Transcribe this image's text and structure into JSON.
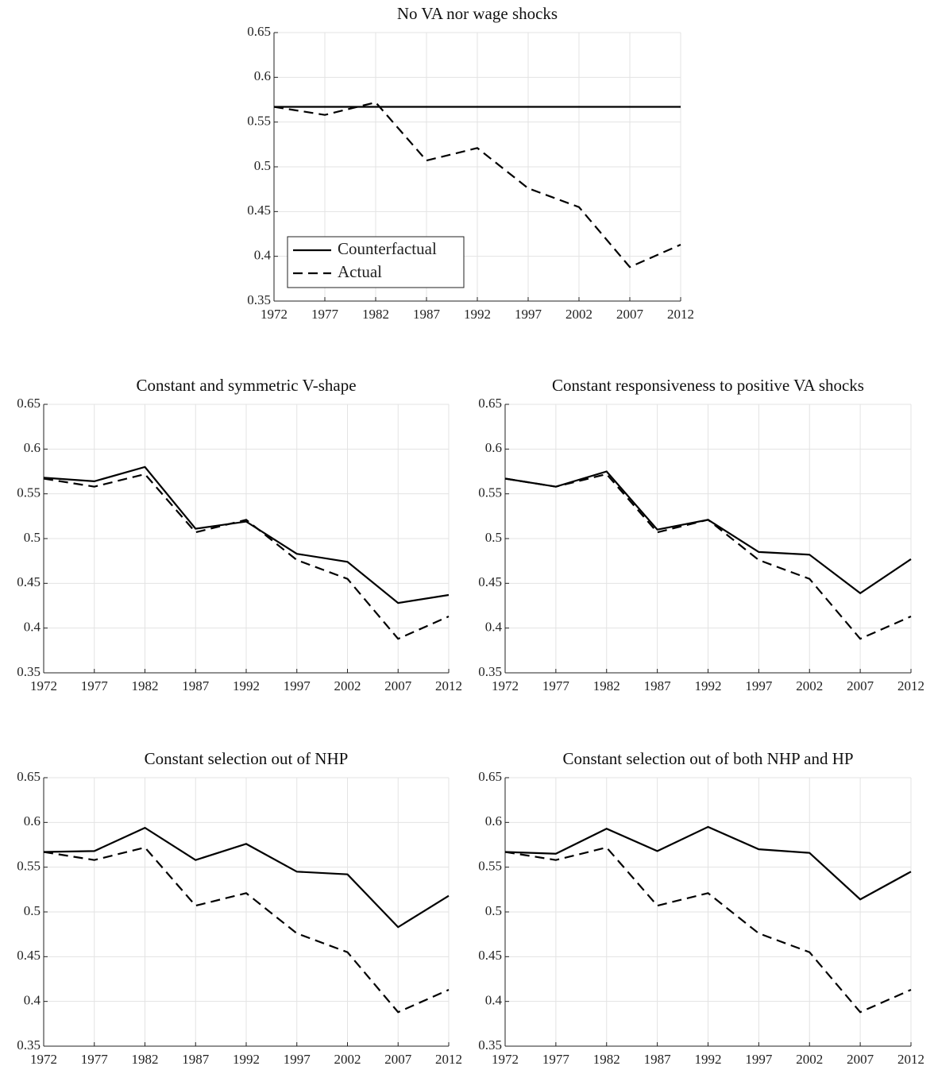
{
  "chart_data": [
    {
      "type": "line",
      "title": "No VA nor wage shocks",
      "x": [
        1972,
        1977,
        1982,
        1987,
        1992,
        1997,
        2002,
        2007,
        2012
      ],
      "series": [
        {
          "name": "Counterfactual",
          "color": "#000000",
          "dashed": false,
          "values": [
            0.567,
            0.567,
            0.567,
            0.567,
            0.567,
            0.567,
            0.567,
            0.567,
            0.567
          ]
        },
        {
          "name": "Actual",
          "color": "#000000",
          "dashed": true,
          "values": [
            0.567,
            0.558,
            0.572,
            0.507,
            0.521,
            0.476,
            0.455,
            0.388,
            0.413
          ]
        }
      ],
      "xlim": [
        1972,
        2012
      ],
      "xticks": [
        1972,
        1977,
        1982,
        1987,
        1992,
        1997,
        2002,
        2007,
        2012
      ],
      "ylim": [
        0.35,
        0.65
      ],
      "yticks": [
        0.35,
        0.4,
        0.45,
        0.5,
        0.55,
        0.6,
        0.65
      ],
      "grid": true,
      "legend": "lower left"
    },
    {
      "type": "line",
      "title": "Constant and symmetric V-shape",
      "x": [
        1972,
        1977,
        1982,
        1987,
        1992,
        1997,
        2002,
        2007,
        2012
      ],
      "series": [
        {
          "name": "Counterfactual",
          "color": "#000000",
          "dashed": false,
          "values": [
            0.568,
            0.564,
            0.58,
            0.511,
            0.519,
            0.483,
            0.474,
            0.428,
            0.437
          ]
        },
        {
          "name": "Actual",
          "color": "#000000",
          "dashed": true,
          "values": [
            0.567,
            0.558,
            0.572,
            0.507,
            0.521,
            0.476,
            0.455,
            0.388,
            0.413
          ]
        }
      ],
      "xlim": [
        1972,
        2012
      ],
      "xticks": [
        1972,
        1977,
        1982,
        1987,
        1992,
        1997,
        2002,
        2007,
        2012
      ],
      "ylim": [
        0.35,
        0.65
      ],
      "yticks": [
        0.35,
        0.4,
        0.45,
        0.5,
        0.55,
        0.6,
        0.65
      ],
      "grid": true
    },
    {
      "type": "line",
      "title": "Constant responsiveness to positive VA shocks",
      "x": [
        1972,
        1977,
        1982,
        1987,
        1992,
        1997,
        2002,
        2007,
        2012
      ],
      "series": [
        {
          "name": "Counterfactual",
          "color": "#000000",
          "dashed": false,
          "values": [
            0.567,
            0.558,
            0.575,
            0.51,
            0.521,
            0.485,
            0.482,
            0.439,
            0.477
          ]
        },
        {
          "name": "Actual",
          "color": "#000000",
          "dashed": true,
          "values": [
            0.567,
            0.558,
            0.572,
            0.507,
            0.521,
            0.476,
            0.455,
            0.388,
            0.413
          ]
        }
      ],
      "xlim": [
        1972,
        2012
      ],
      "xticks": [
        1972,
        1977,
        1982,
        1987,
        1992,
        1997,
        2002,
        2007,
        2012
      ],
      "ylim": [
        0.35,
        0.65
      ],
      "yticks": [
        0.35,
        0.4,
        0.45,
        0.5,
        0.55,
        0.6,
        0.65
      ],
      "grid": true
    },
    {
      "type": "line",
      "title": "Constant selection out of NHP",
      "x": [
        1972,
        1977,
        1982,
        1987,
        1992,
        1997,
        2002,
        2007,
        2012
      ],
      "series": [
        {
          "name": "Counterfactual",
          "color": "#000000",
          "dashed": false,
          "values": [
            0.567,
            0.568,
            0.594,
            0.558,
            0.576,
            0.545,
            0.542,
            0.483,
            0.518
          ]
        },
        {
          "name": "Actual",
          "color": "#000000",
          "dashed": true,
          "values": [
            0.567,
            0.558,
            0.572,
            0.507,
            0.521,
            0.476,
            0.455,
            0.388,
            0.413
          ]
        }
      ],
      "xlim": [
        1972,
        2012
      ],
      "xticks": [
        1972,
        1977,
        1982,
        1987,
        1992,
        1997,
        2002,
        2007,
        2012
      ],
      "ylim": [
        0.35,
        0.65
      ],
      "yticks": [
        0.35,
        0.4,
        0.45,
        0.5,
        0.55,
        0.6,
        0.65
      ],
      "grid": true
    },
    {
      "type": "line",
      "title": "Constant selection out of both NHP and HP",
      "x": [
        1972,
        1977,
        1982,
        1987,
        1992,
        1997,
        2002,
        2007,
        2012
      ],
      "series": [
        {
          "name": "Counterfactual",
          "color": "#000000",
          "dashed": false,
          "values": [
            0.567,
            0.565,
            0.593,
            0.568,
            0.595,
            0.57,
            0.566,
            0.514,
            0.545
          ]
        },
        {
          "name": "Actual",
          "color": "#000000",
          "dashed": true,
          "values": [
            0.567,
            0.558,
            0.572,
            0.507,
            0.521,
            0.476,
            0.455,
            0.388,
            0.413
          ]
        }
      ],
      "xlim": [
        1972,
        2012
      ],
      "xticks": [
        1972,
        1977,
        1982,
        1987,
        1992,
        1997,
        2002,
        2007,
        2012
      ],
      "ylim": [
        0.35,
        0.65
      ],
      "yticks": [
        0.35,
        0.4,
        0.45,
        0.5,
        0.55,
        0.6,
        0.65
      ],
      "grid": true
    }
  ]
}
